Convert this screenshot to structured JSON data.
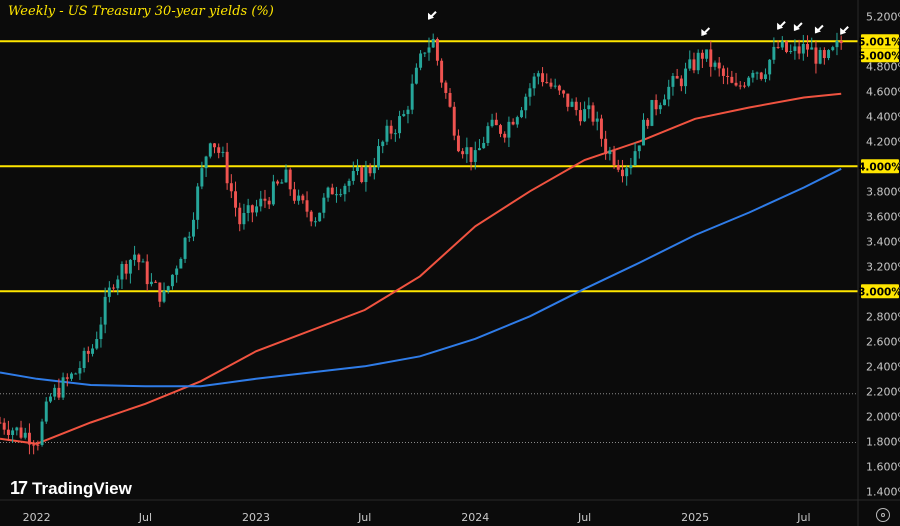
{
  "title": "Weekly - US Treasury 30-year yields (%)",
  "logo": {
    "text": "TradingView",
    "icon": "tradingview-logo-icon"
  },
  "settings_icon": "axis-settings-icon",
  "colors": {
    "background": "#0b0b0b",
    "up": "#26a69a",
    "down": "#ef5350",
    "ma_red": "#f05340",
    "ma_blue": "#2f7ce8",
    "level": "#ffe600",
    "axis_text": "#c8c8c8"
  },
  "chart_data": {
    "type": "candlestick",
    "title": "Weekly - US Treasury 30-year yields (%)",
    "y_axis": {
      "ticks": [
        "1.400%",
        "1.600%",
        "1.800%",
        "2.000%",
        "2.200%",
        "2.400%",
        "2.600%",
        "2.800%",
        "3.000%",
        "3.200%",
        "3.400%",
        "3.600%",
        "3.800%",
        "4.000%",
        "4.200%",
        "4.400%",
        "4.600%",
        "4.800%",
        "5.000%",
        "5.200%"
      ],
      "range": [
        1.33,
        5.33
      ]
    },
    "x_axis": {
      "labels": [
        "2022",
        "Jul",
        "2023",
        "Jul",
        "2024",
        "Jul",
        "2025",
        "Jul"
      ],
      "label_dates": [
        "2022-01-01",
        "2022-07-01",
        "2023-01-01",
        "2023-07-01",
        "2024-01-01",
        "2024-07-01",
        "2025-01-01",
        "2025-07-01"
      ],
      "range": [
        "2021-11-01",
        "2025-09-29"
      ]
    },
    "horizontal_levels": [
      {
        "value": 5.0,
        "label": "5.001%",
        "style": "solid"
      },
      {
        "value": 4.0,
        "label": "4.000%",
        "style": "solid"
      },
      {
        "value": 3.0,
        "label": "3.000%",
        "style": "solid"
      },
      {
        "value": 5.0,
        "label": "5.000%",
        "style": "badge"
      },
      {
        "value": 2.18,
        "style": "dotted"
      },
      {
        "value": 1.79,
        "style": "dotted"
      }
    ],
    "moving_averages": [
      {
        "color": "red",
        "points": [
          [
            1.8,
            "2022-01-01"
          ]
        ],
        "path": [
          [
            "2021-11-01",
            1.82
          ],
          [
            "2022-01-01",
            1.78
          ],
          [
            "2022-04-01",
            1.95
          ],
          [
            "2022-07-01",
            2.1
          ],
          [
            "2022-10-01",
            2.28
          ],
          [
            "2023-01-01",
            2.52
          ],
          [
            "2023-07-01",
            2.85
          ],
          [
            "2023-10-01",
            3.12
          ],
          [
            "2024-01-01",
            3.52
          ],
          [
            "2024-04-01",
            3.8
          ],
          [
            "2024-07-01",
            4.05
          ],
          [
            "2024-10-01",
            4.2
          ],
          [
            "2025-01-01",
            4.38
          ],
          [
            "2025-04-01",
            4.47
          ],
          [
            "2025-07-01",
            4.55
          ],
          [
            "2025-09-01",
            4.58
          ]
        ]
      },
      {
        "color": "blue",
        "path": [
          [
            "2021-11-01",
            2.35
          ],
          [
            "2022-01-01",
            2.3
          ],
          [
            "2022-04-01",
            2.25
          ],
          [
            "2022-07-01",
            2.24
          ],
          [
            "2022-10-01",
            2.24
          ],
          [
            "2023-01-01",
            2.3
          ],
          [
            "2023-07-01",
            2.4
          ],
          [
            "2023-10-01",
            2.48
          ],
          [
            "2024-01-01",
            2.62
          ],
          [
            "2024-04-01",
            2.8
          ],
          [
            "2024-07-01",
            3.02
          ],
          [
            "2024-10-01",
            3.23
          ],
          [
            "2025-01-01",
            3.45
          ],
          [
            "2025-04-01",
            3.63
          ],
          [
            "2025-07-01",
            3.83
          ],
          [
            "2025-09-01",
            3.98
          ]
        ]
      }
    ],
    "annotations": [
      {
        "type": "arrow",
        "date": "2023-10-16",
        "value": 5.18
      },
      {
        "type": "arrow",
        "date": "2025-01-13",
        "value": 5.05
      },
      {
        "type": "arrow",
        "date": "2025-05-19",
        "value": 5.1
      },
      {
        "type": "arrow",
        "date": "2025-06-16",
        "value": 5.09
      },
      {
        "type": "arrow",
        "date": "2025-07-21",
        "value": 5.07
      },
      {
        "type": "arrow",
        "date": "2025-09-01",
        "value": 5.06
      }
    ],
    "close_path": [
      [
        "2021-11-01",
        1.95
      ],
      [
        "2021-12-01",
        1.88
      ],
      [
        "2022-01-03",
        1.82
      ],
      [
        "2022-01-24",
        2.15
      ],
      [
        "2022-03-07",
        2.35
      ],
      [
        "2022-04-04",
        2.55
      ],
      [
        "2022-05-09",
        3.1
      ],
      [
        "2022-06-13",
        3.3
      ],
      [
        "2022-07-11",
        3.05
      ],
      [
        "2022-08-01",
        2.95
      ],
      [
        "2022-09-12",
        3.5
      ],
      [
        "2022-10-17",
        4.25
      ],
      [
        "2022-11-07",
        4.05
      ],
      [
        "2022-12-05",
        3.55
      ],
      [
        "2023-01-09",
        3.7
      ],
      [
        "2023-02-20",
        3.9
      ],
      [
        "2023-03-13",
        3.7
      ],
      [
        "2023-04-10",
        3.6
      ],
      [
        "2023-05-08",
        3.82
      ],
      [
        "2023-06-12",
        3.9
      ],
      [
        "2023-07-10",
        3.98
      ],
      [
        "2023-08-07",
        4.25
      ],
      [
        "2023-09-04",
        4.4
      ],
      [
        "2023-10-09",
        4.95
      ],
      [
        "2023-10-23",
        5.0
      ],
      [
        "2023-11-06",
        4.7
      ],
      [
        "2023-12-04",
        4.2
      ],
      [
        "2024-01-01",
        4.05
      ],
      [
        "2024-01-22",
        4.3
      ],
      [
        "2024-02-19",
        4.3
      ],
      [
        "2024-03-11",
        4.45
      ],
      [
        "2024-04-15",
        4.75
      ],
      [
        "2024-05-13",
        4.6
      ],
      [
        "2024-06-17",
        4.45
      ],
      [
        "2024-07-15",
        4.4
      ],
      [
        "2024-08-05",
        4.15
      ],
      [
        "2024-09-02",
        4.0
      ],
      [
        "2024-09-16",
        4.05
      ],
      [
        "2024-10-14",
        4.4
      ],
      [
        "2024-11-11",
        4.6
      ],
      [
        "2024-12-09",
        4.7
      ],
      [
        "2025-01-13",
        4.9
      ],
      [
        "2025-02-10",
        4.75
      ],
      [
        "2025-03-10",
        4.6
      ],
      [
        "2025-04-07",
        4.8
      ],
      [
        "2025-04-21",
        4.75
      ],
      [
        "2025-05-19",
        4.95
      ],
      [
        "2025-06-09",
        4.9
      ],
      [
        "2025-07-07",
        4.95
      ],
      [
        "2025-08-04",
        4.82
      ],
      [
        "2025-09-01",
        4.99
      ]
    ]
  }
}
